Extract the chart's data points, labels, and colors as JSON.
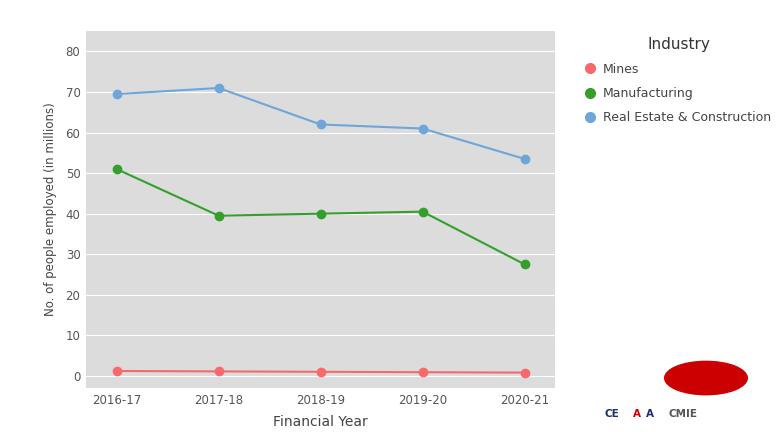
{
  "years": [
    "2016-17",
    "2017-18",
    "2018-19",
    "2019-20",
    "2020-21"
  ],
  "mines": [
    1.2,
    1.1,
    1.0,
    0.9,
    0.8
  ],
  "manufacturing": [
    51,
    39.5,
    40,
    40.5,
    27.5
  ],
  "real_estate": [
    69.5,
    71,
    62,
    61,
    53.5
  ],
  "mines_color": "#F8696B",
  "manufacturing_color": "#33A02C",
  "real_estate_color": "#6EA6D9",
  "bg_color": "#DCDCDC",
  "grid_color": "#FFFFFF",
  "ylabel": "No. of people employed (in millions)",
  "xlabel": "Financial Year",
  "legend_title": "Industry",
  "legend_labels": [
    "Mines",
    "Manufacturing",
    "Real Estate & Construction"
  ],
  "yticks": [
    0,
    10,
    20,
    30,
    40,
    50,
    60,
    70,
    80
  ],
  "ylim": [
    -3,
    85
  ],
  "marker_size": 6,
  "linewidth": 1.5
}
